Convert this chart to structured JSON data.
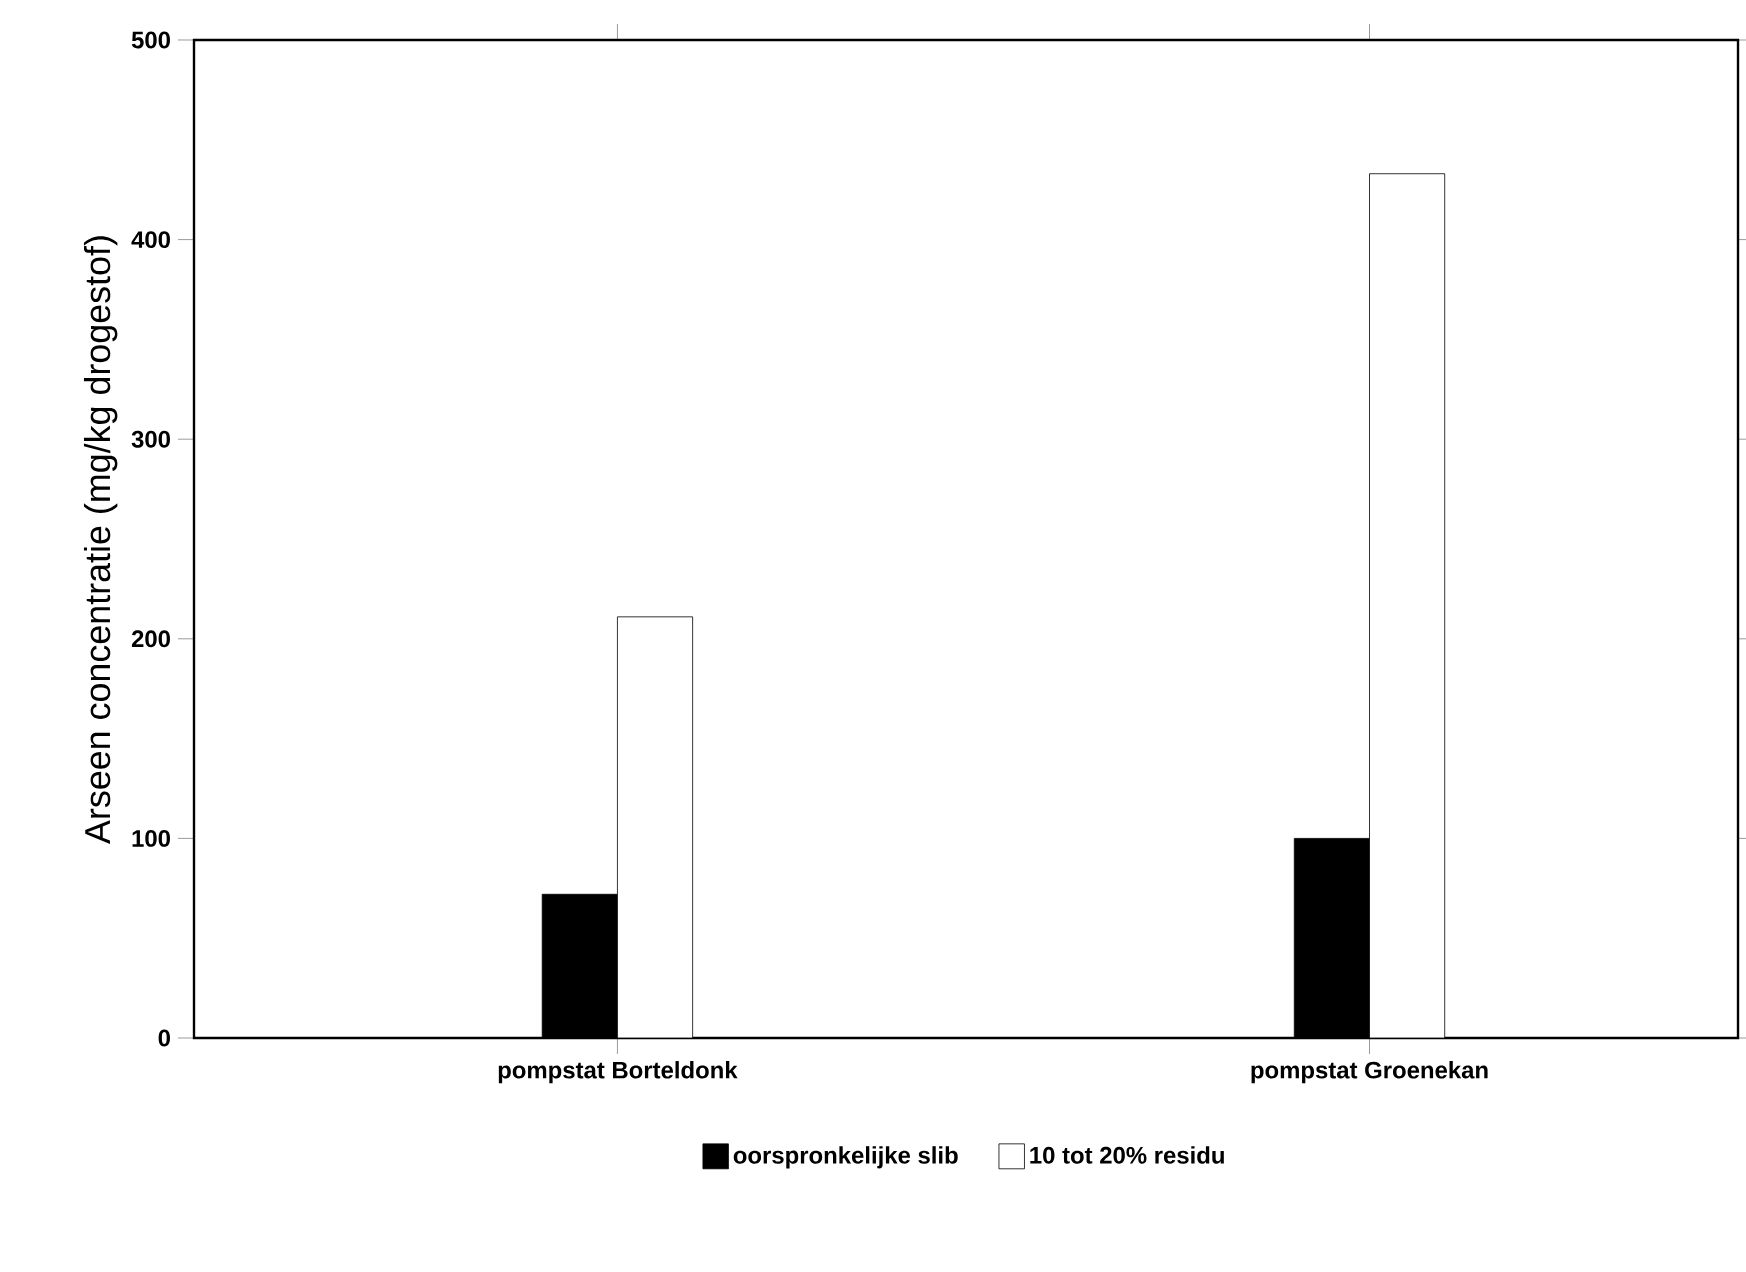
{
  "chart_data": {
    "type": "bar",
    "ylabel": "Arseen concentratie (mg/kg drogestof)",
    "categories": [
      "pompstat  Borteldonk",
      "pompstat  Groenekan"
    ],
    "series": [
      {
        "name": "oorspronkelijke slib",
        "color": "#000000",
        "values": [
          72,
          100
        ]
      },
      {
        "name": "10 tot 20% residu",
        "color": "#ffffff",
        "values": [
          211,
          433
        ]
      }
    ],
    "ylim": [
      0,
      500
    ],
    "yticks": [
      0,
      100,
      200,
      300,
      400,
      500
    ],
    "legend": "bottom"
  }
}
